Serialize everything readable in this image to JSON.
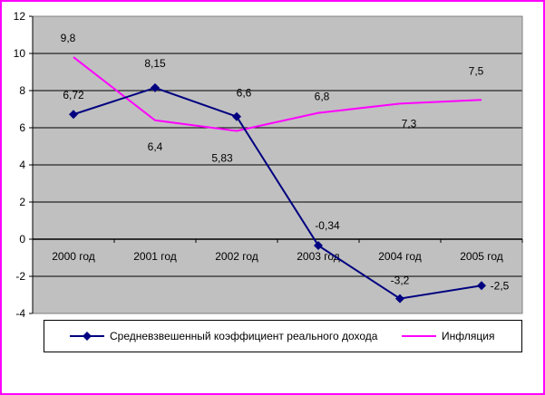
{
  "chart_data": {
    "type": "line",
    "title": "",
    "xlabel": "",
    "ylabel": "",
    "categories": [
      "2000 год",
      "2001 год",
      "2002 год",
      "2003 год",
      "2004 год",
      "2005 год"
    ],
    "ylim": [
      -4,
      12
    ],
    "yticks": [
      "-4",
      "-2",
      "0",
      "2",
      "4",
      "6",
      "8",
      "10",
      "12"
    ],
    "grid": true,
    "legend_position": "bottom",
    "series": [
      {
        "name": "Средневзвешенный коэффициент реального дохода",
        "values": [
          6.72,
          8.15,
          6.6,
          -0.34,
          -3.2,
          -2.5
        ],
        "labels": [
          "6,72",
          "8,15",
          "6,6",
          "-0,34",
          "-3,2",
          "-2,5"
        ],
        "color": "#000080",
        "marker": "diamond"
      },
      {
        "name": "Инфляция",
        "values": [
          9.8,
          6.4,
          5.83,
          6.8,
          7.3,
          7.5
        ],
        "labels": [
          "9,8",
          "6,4",
          "5,83",
          "6,8",
          "7,3",
          "7,5"
        ],
        "color": "#ff00ff",
        "marker": "none"
      }
    ]
  },
  "colors": {
    "frame_border": "#ff00ff",
    "plot_background": "#c0c0c0",
    "gridline": "#000000"
  }
}
